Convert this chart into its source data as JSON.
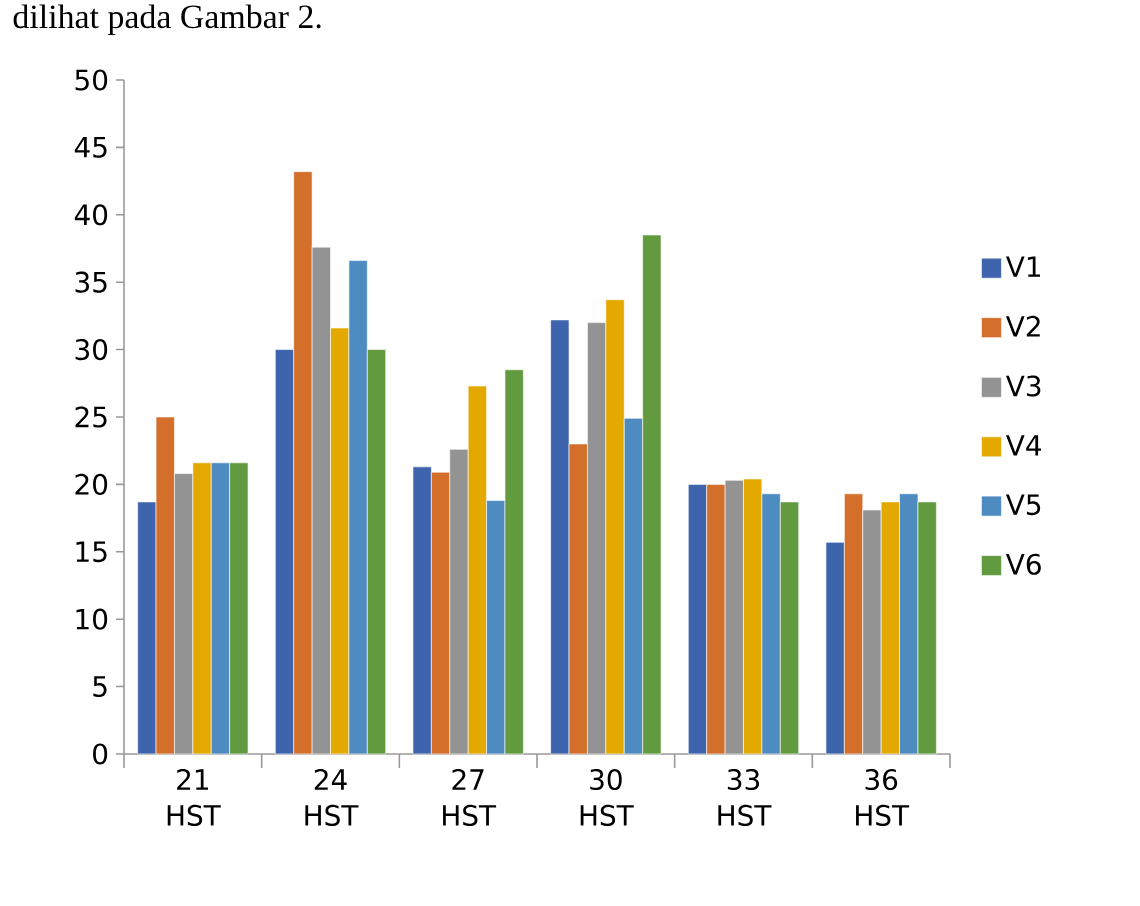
{
  "chart_data": {
    "type": "bar",
    "categories": [
      "21 HST",
      "24 HST",
      "27 HST",
      "30 HST",
      "33 HST",
      "36 HST"
    ],
    "series": [
      {
        "name": "V1",
        "color": "#3e64ad",
        "values": [
          18.7,
          30.0,
          21.3,
          32.2,
          20.0,
          15.7
        ]
      },
      {
        "name": "V2",
        "color": "#d46e2b",
        "values": [
          25.0,
          43.2,
          20.9,
          23.0,
          20.0,
          19.3
        ]
      },
      {
        "name": "V3",
        "color": "#939393",
        "values": [
          20.8,
          37.6,
          22.6,
          32.0,
          20.3,
          18.1
        ]
      },
      {
        "name": "V4",
        "color": "#e3a900",
        "values": [
          21.6,
          31.6,
          27.3,
          33.7,
          20.4,
          18.7
        ]
      },
      {
        "name": "V5",
        "color": "#4e8bc0",
        "values": [
          21.6,
          36.6,
          18.8,
          24.9,
          19.3,
          19.3
        ]
      },
      {
        "name": "V6",
        "color": "#629a3f",
        "values": [
          21.6,
          30.0,
          28.5,
          38.5,
          18.7,
          18.7
        ]
      }
    ],
    "ylim": [
      0,
      50
    ],
    "yticks": [
      0,
      5,
      10,
      15,
      20,
      25,
      30,
      35,
      40,
      45,
      50
    ],
    "legend": "right",
    "annotations": [
      "dilihat pada Gambar 2."
    ]
  }
}
